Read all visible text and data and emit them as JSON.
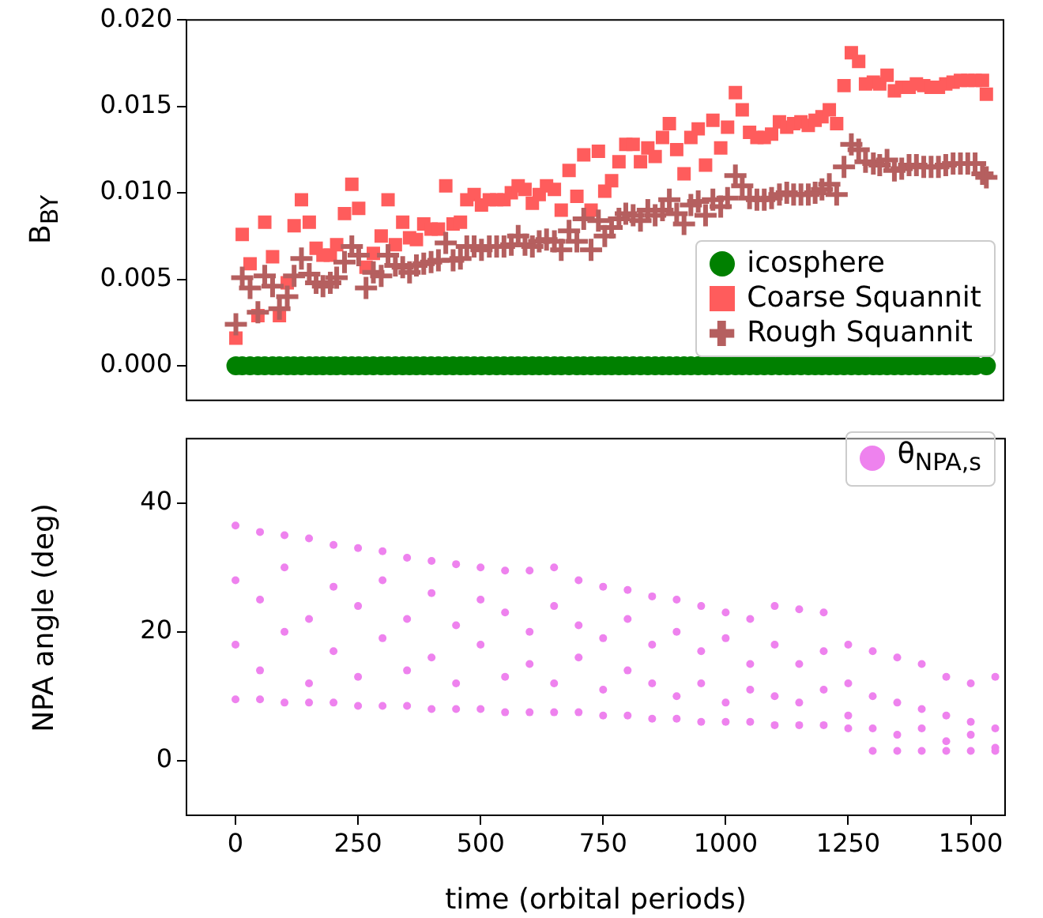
{
  "chart_data": [
    {
      "type": "scatter",
      "ylabel": "B$_{BY}$",
      "xlim": [
        -100,
        1570
      ],
      "ylim": [
        -0.002,
        0.02
      ],
      "yticks": [
        {
          "value": 0,
          "label": "0.000"
        },
        {
          "value": 0.005,
          "label": "0.005"
        },
        {
          "value": 0.01,
          "label": "0.010"
        },
        {
          "value": 0.015,
          "label": "0.015"
        },
        {
          "value": 0.02,
          "label": "0.020"
        }
      ],
      "tick_labels": "y",
      "grid": false,
      "legend": "bottom right",
      "x": [
        1,
        14,
        30,
        46,
        60,
        76,
        90,
        106,
        120,
        135,
        151,
        165,
        179,
        194,
        207,
        223,
        238,
        252,
        267,
        282,
        298,
        312,
        327,
        342,
        356,
        370,
        385,
        400,
        415,
        430,
        445,
        460,
        473,
        488,
        503,
        519,
        534,
        549,
        564,
        578,
        592,
        607,
        621,
        636,
        652,
        666,
        682,
        698,
        712,
        727,
        742,
        755,
        769,
        784,
        798,
        813,
        828,
        843,
        858,
        873,
        887,
        902,
        917,
        931,
        946,
        961,
        976,
        992,
        1006,
        1022,
        1036,
        1051,
        1066,
        1081,
        1096,
        1112,
        1127,
        1141,
        1156,
        1171,
        1185,
        1199,
        1214,
        1229,
        1244,
        1259,
        1274,
        1288,
        1304,
        1317,
        1332,
        1347,
        1362,
        1377,
        1392,
        1407,
        1422,
        1437,
        1452,
        1467,
        1482,
        1497,
        1512,
        1527,
        1535
      ],
      "series": [
        {
          "name": "icosphere",
          "color": "#008000",
          "marker": "circle",
          "x": [
            1,
            14,
            30,
            46,
            60,
            76,
            90,
            106,
            120,
            135,
            151,
            165,
            179,
            194,
            207,
            223,
            238,
            252,
            267,
            282,
            298,
            312,
            327,
            342,
            356,
            370,
            385,
            400,
            415,
            430,
            445,
            460,
            473,
            488,
            503,
            519,
            534,
            549,
            564,
            578,
            592,
            607,
            621,
            636,
            652,
            666,
            682,
            698,
            712,
            727,
            742,
            755,
            769,
            784,
            798,
            813,
            828,
            843,
            858,
            873,
            887,
            902,
            917,
            931,
            946,
            961,
            976,
            992,
            1006,
            1022,
            1036,
            1051,
            1066,
            1081,
            1096,
            1112,
            1127,
            1141,
            1156,
            1171,
            1185,
            1199,
            1214,
            1229,
            1244,
            1259,
            1274,
            1288,
            1304,
            1317,
            1332,
            1347,
            1362,
            1377,
            1392,
            1407,
            1422,
            1437,
            1452,
            1467,
            1482,
            1497,
            1512,
            1535
          ],
          "values": [
            0,
            0,
            0,
            0,
            0,
            0,
            0,
            0,
            0,
            0,
            0,
            0,
            0,
            0,
            0,
            0,
            0,
            0,
            0,
            0,
            0,
            0,
            0,
            0,
            0,
            0,
            0,
            0,
            0,
            0,
            0,
            0,
            0,
            0,
            0,
            0,
            0,
            0,
            0,
            0,
            0,
            0,
            0,
            0,
            0,
            0,
            0,
            0,
            0,
            0,
            0,
            0,
            0,
            0,
            0,
            0,
            0,
            0,
            0,
            0,
            0,
            0,
            0,
            0,
            0,
            0,
            0,
            0,
            0,
            0,
            0,
            0,
            0,
            0,
            0,
            0,
            0,
            0,
            0,
            0,
            0,
            0,
            0,
            0,
            0,
            0,
            0,
            0,
            0,
            0,
            0,
            0,
            0,
            0,
            0,
            0,
            0,
            0,
            0,
            0,
            0,
            0,
            0,
            0
          ]
        },
        {
          "name": "Coarse Squannit",
          "color": "#ff5c5c",
          "marker": "square",
          "values": [
            0.0016,
            0.0076,
            0.0059,
            0.0029,
            0.0083,
            0.0063,
            0.0029,
            0.0048,
            0.0081,
            0.0096,
            0.0083,
            0.0068,
            0.0064,
            0.0064,
            0.007,
            0.0088,
            0.0105,
            0.0091,
            0.0057,
            0.0065,
            0.0075,
            0.0096,
            0.007,
            0.0083,
            0.0074,
            0.0073,
            0.0082,
            0.0079,
            0.0079,
            0.0104,
            0.0082,
            0.0083,
            0.0096,
            0.0099,
            0.0093,
            0.0096,
            0.0096,
            0.0096,
            0.01,
            0.0104,
            0.0102,
            0.0094,
            0.0099,
            0.0104,
            0.0102,
            0.009,
            0.0113,
            0.0098,
            0.0122,
            0.009,
            0.0124,
            0.0101,
            0.0107,
            0.0118,
            0.0128,
            0.0128,
            0.0118,
            0.0126,
            0.0121,
            0.0132,
            0.014,
            0.0125,
            0.0111,
            0.0132,
            0.0137,
            0.0116,
            0.0142,
            0.0126,
            0.0138,
            0.0158,
            0.0148,
            0.0135,
            0.0132,
            0.0132,
            0.0134,
            0.0141,
            0.0138,
            0.014,
            0.0141,
            0.0139,
            0.0142,
            0.0144,
            0.0148,
            0.014,
            0.0162,
            0.0181,
            0.0176,
            0.0163,
            0.0164,
            0.0163,
            0.0168,
            0.0159,
            0.0161,
            0.0161,
            0.0163,
            0.0162,
            0.0161,
            0.0161,
            0.0163,
            0.0164,
            0.0165,
            0.0165,
            0.0165,
            0.0165,
            0.0157
          ]
        },
        {
          "name": "Rough Squannit",
          "color": "#b55f5f",
          "marker": "cross",
          "values": [
            0.0024,
            0.0051,
            0.0045,
            0.0031,
            0.0052,
            0.0046,
            0.0033,
            0.004,
            0.0052,
            0.0062,
            0.0053,
            0.0048,
            0.0046,
            0.0048,
            0.0051,
            0.006,
            0.0069,
            0.0064,
            0.0045,
            0.0054,
            0.0052,
            0.0064,
            0.0058,
            0.0057,
            0.0054,
            0.0058,
            0.0059,
            0.006,
            0.0061,
            0.0071,
            0.0061,
            0.0062,
            0.0069,
            0.0069,
            0.0067,
            0.0069,
            0.0069,
            0.0069,
            0.007,
            0.0075,
            0.007,
            0.0069,
            0.0072,
            0.0073,
            0.0072,
            0.0067,
            0.0078,
            0.0072,
            0.0085,
            0.0067,
            0.0084,
            0.0075,
            0.008,
            0.0085,
            0.0088,
            0.0087,
            0.0084,
            0.009,
            0.0087,
            0.009,
            0.0096,
            0.0088,
            0.0082,
            0.0093,
            0.0095,
            0.0087,
            0.0096,
            0.0092,
            0.0097,
            0.011,
            0.0104,
            0.0097,
            0.0096,
            0.0096,
            0.0097,
            0.0099,
            0.01,
            0.0099,
            0.0099,
            0.0099,
            0.01,
            0.0102,
            0.0105,
            0.0099,
            0.0115,
            0.0128,
            0.0125,
            0.0118,
            0.0117,
            0.0116,
            0.0119,
            0.0113,
            0.0114,
            0.0116,
            0.0116,
            0.0115,
            0.0115,
            0.0115,
            0.0116,
            0.0117,
            0.0117,
            0.0117,
            0.0117,
            0.0111,
            0.0109
          ]
        }
      ]
    },
    {
      "type": "scatter",
      "xlabel": "time (orbital periods)",
      "ylabel": "NPA angle (deg)",
      "xlim": [
        -100,
        1570
      ],
      "xticks": [
        0,
        250,
        500,
        750,
        1000,
        1250,
        1500
      ],
      "ylim": [
        -8.5,
        50
      ],
      "yticks": [
        0,
        20,
        40
      ],
      "grid": false,
      "legend": "top right",
      "series": [
        {
          "name": "θ$_{NPA,s}$",
          "color": "#ee82ee",
          "marker": "circle",
          "x": [
            0,
            0,
            0,
            0,
            50,
            50,
            50,
            50,
            100,
            100,
            100,
            100,
            150,
            150,
            150,
            150,
            200,
            200,
            200,
            200,
            250,
            250,
            250,
            250,
            300,
            300,
            300,
            300,
            350,
            350,
            350,
            350,
            400,
            400,
            400,
            400,
            450,
            450,
            450,
            450,
            500,
            500,
            500,
            500,
            550,
            550,
            550,
            550,
            600,
            600,
            600,
            600,
            650,
            650,
            650,
            650,
            700,
            700,
            700,
            700,
            750,
            750,
            750,
            750,
            800,
            800,
            800,
            800,
            850,
            850,
            850,
            850,
            900,
            900,
            900,
            900,
            950,
            950,
            950,
            950,
            1000,
            1000,
            1000,
            1000,
            1050,
            1050,
            1050,
            1050,
            1100,
            1100,
            1100,
            1100,
            1150,
            1150,
            1150,
            1150,
            1200,
            1200,
            1200,
            1200,
            1250,
            1250,
            1250,
            1250,
            1300,
            1300,
            1300,
            1300,
            1350,
            1350,
            1350,
            1350,
            1400,
            1400,
            1400,
            1400,
            1450,
            1450,
            1450,
            1450,
            1500,
            1500,
            1500,
            1500,
            1550,
            1550,
            1550,
            1550
          ],
          "values": [
            36.5,
            28,
            18,
            9.5,
            35.5,
            25,
            14,
            9.5,
            35,
            30,
            20,
            9,
            34.5,
            22,
            12,
            9,
            33.5,
            27,
            17,
            9,
            33,
            24,
            13,
            8.5,
            32.5,
            28,
            19,
            8.5,
            31.5,
            22,
            14,
            8.5,
            31,
            26,
            16,
            8,
            30.5,
            21,
            12,
            8,
            30,
            25,
            18,
            8,
            29.5,
            23,
            13,
            7.5,
            29.5,
            20,
            15,
            7.5,
            30,
            24,
            12,
            7.5,
            28,
            21,
            16,
            7.5,
            27,
            19,
            11,
            7,
            26.5,
            22,
            14,
            7,
            25.5,
            18,
            12,
            6.5,
            25,
            20,
            10,
            6.5,
            24,
            17,
            12,
            6,
            23,
            19,
            9,
            6,
            22,
            15,
            11,
            6,
            24,
            18,
            10,
            5.5,
            23.5,
            15,
            9,
            5.5,
            23,
            17,
            11,
            5.5,
            18,
            12,
            7,
            5,
            17,
            10,
            5,
            1.5,
            16,
            9,
            4,
            1.5,
            15,
            8,
            5,
            1.5,
            13,
            7,
            3,
            1.5,
            12,
            6,
            4,
            1.5,
            13,
            5,
            2,
            1.5
          ]
        }
      ]
    }
  ]
}
